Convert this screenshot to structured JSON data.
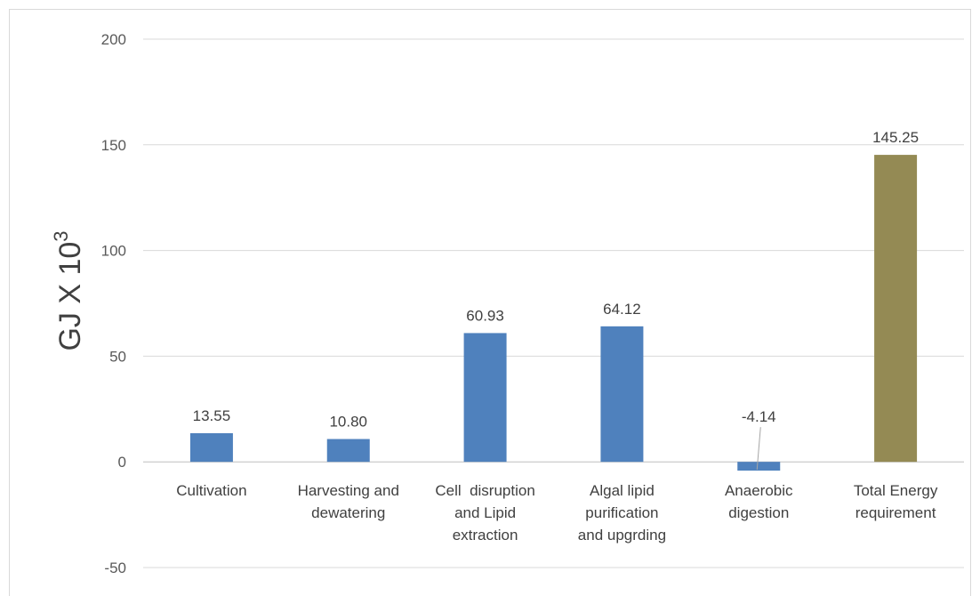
{
  "chart_data": {
    "type": "bar",
    "categories": [
      [
        "Cultivation"
      ],
      [
        "Harvesting and",
        "dewatering"
      ],
      [
        "Cell  disruption",
        "and Lipid",
        "extraction"
      ],
      [
        "Algal lipid",
        "purification",
        "and upgrding"
      ],
      [
        "Anaerobic",
        "digestion"
      ],
      [
        "Total Energy",
        "requirement"
      ]
    ],
    "values": [
      13.55,
      10.8,
      60.93,
      64.12,
      -4.14,
      145.25
    ],
    "data_labels": [
      "13.55",
      "10.80",
      "60.93",
      "64.12",
      "-4.14",
      "145.25"
    ],
    "bar_colors": [
      "#4f81bd",
      "#4f81bd",
      "#4f81bd",
      "#4f81bd",
      "#4f81bd",
      "#948a54"
    ],
    "ylabel": "GJ X 10",
    "ylabel_superscript": "3",
    "xlabel": "",
    "ylim": [
      -50,
      200
    ],
    "yticks": [
      -50,
      0,
      50,
      100,
      150,
      200
    ],
    "grid": true,
    "gridline_color": "#d9d9d9",
    "axis_line_color": "#bfbfbf",
    "leader_line_color": "#a6a6a6"
  }
}
